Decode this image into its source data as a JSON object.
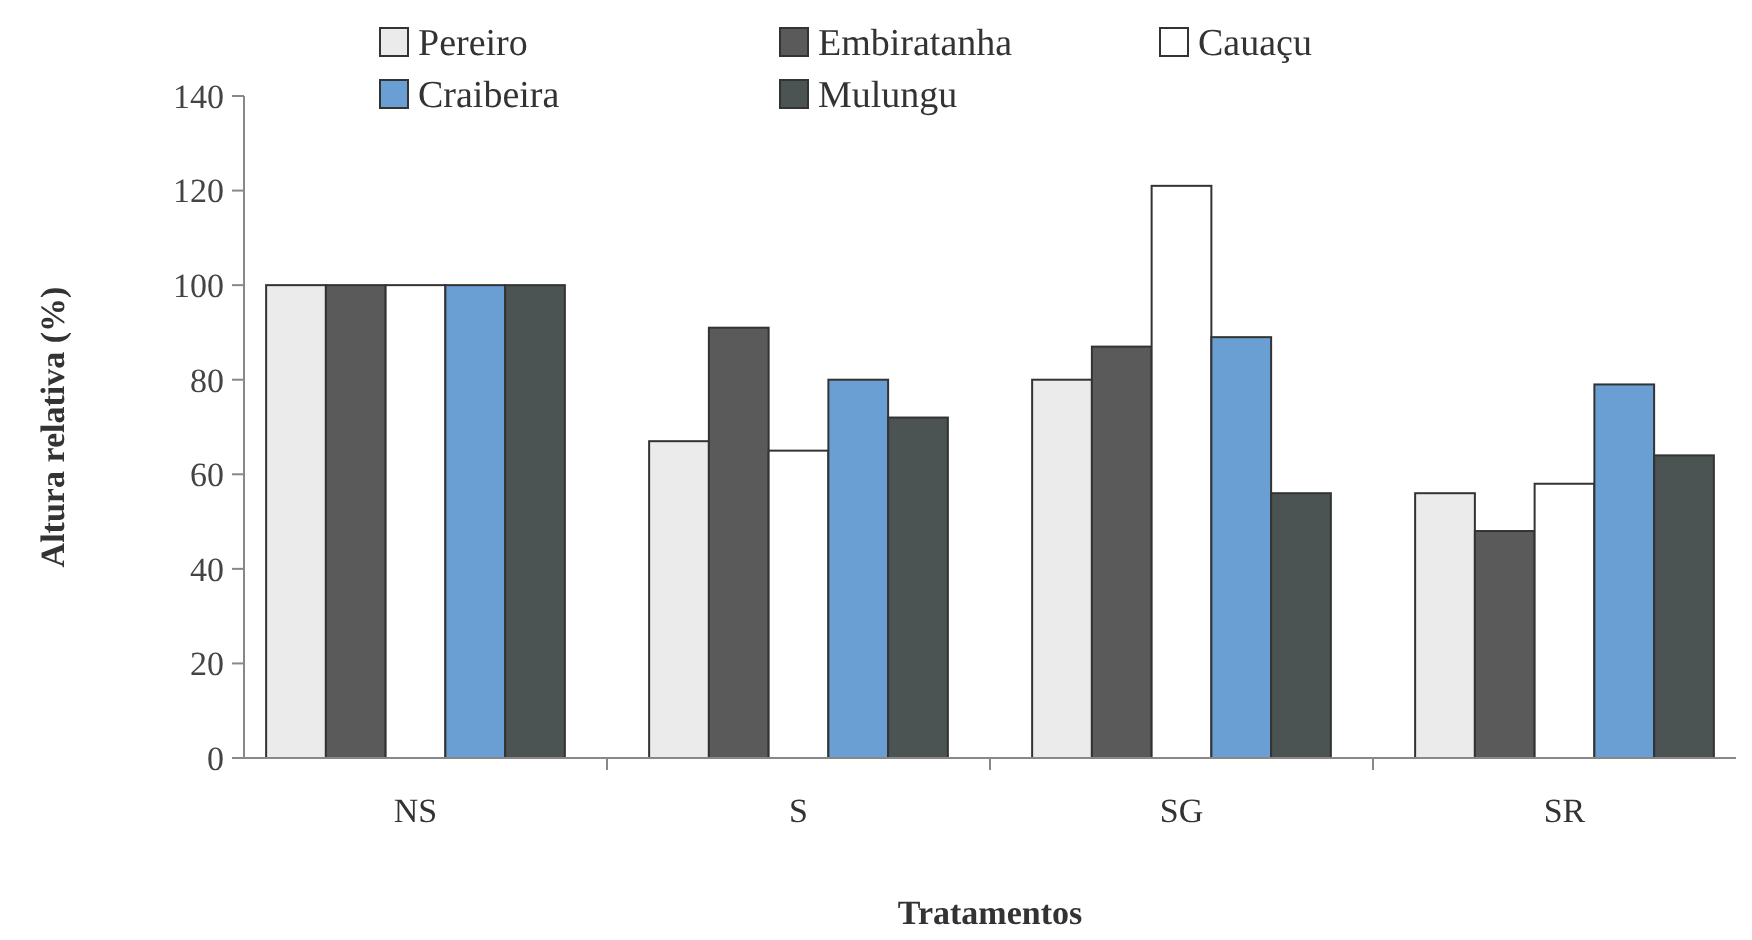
{
  "chart_data": {
    "type": "bar",
    "xlabel": "Tratamentos",
    "ylabel": "Altura relativa (%)",
    "categories": [
      "NS",
      "S",
      "SG",
      "SR"
    ],
    "series": [
      {
        "name": "Pereiro",
        "color": "#ebebeb",
        "values": [
          100,
          67,
          80,
          56
        ]
      },
      {
        "name": "Embiratanha",
        "color": "#5a5a5a",
        "values": [
          100,
          91,
          87,
          48
        ]
      },
      {
        "name": "Cauaçu",
        "color": "#ffffff",
        "values": [
          100,
          65,
          121,
          58
        ]
      },
      {
        "name": "Craibeira",
        "color": "#6a9fd4",
        "values": [
          100,
          80,
          89,
          79
        ]
      },
      {
        "name": "Mulungu",
        "color": "#4b5452",
        "values": [
          100,
          72,
          56,
          64
        ]
      }
    ],
    "ylim": [
      0,
      140
    ],
    "yticks": [
      0,
      20,
      40,
      60,
      80,
      100,
      120,
      140
    ],
    "legend": "top"
  }
}
